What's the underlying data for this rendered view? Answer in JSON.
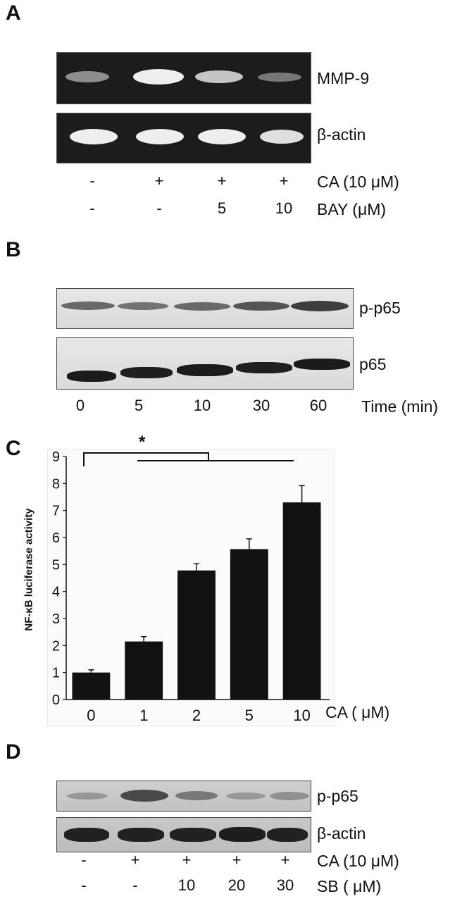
{
  "panels": {
    "a": {
      "letter": "A",
      "bands": [
        "MMP-9",
        "β-actin"
      ],
      "conditions": [
        {
          "label": "CA (10 μM)",
          "values": [
            "-",
            "+",
            "+",
            "+"
          ]
        },
        {
          "label": "BAY (μM)",
          "values": [
            "-",
            "-",
            "5",
            "10"
          ]
        }
      ],
      "mmp9_intensity": [
        0.5,
        1.0,
        0.8,
        0.4
      ],
      "actin_intensity": [
        1.0,
        1.0,
        1.0,
        0.9
      ]
    },
    "b": {
      "letter": "B",
      "bands": [
        "p-p65",
        "p65"
      ],
      "time_label": "Time (min)",
      "times": [
        "0",
        "5",
        "10",
        "30",
        "60"
      ],
      "pp65_intensity": [
        0.6,
        0.55,
        0.6,
        0.7,
        0.8
      ]
    },
    "c": {
      "letter": "C",
      "significance": "*"
    },
    "d": {
      "letter": "D",
      "bands": [
        "p-p65",
        "β-actin"
      ],
      "conditions": [
        {
          "label": "CA (10 μM)",
          "values": [
            "-",
            "+",
            "+",
            "+",
            "+"
          ]
        },
        {
          "label": "SB ( μM)",
          "values": [
            "-",
            "-",
            "10",
            "20",
            "30"
          ]
        }
      ],
      "pp65_intensity": [
        0.35,
        0.8,
        0.5,
        0.35,
        0.4
      ]
    }
  },
  "chart_data": {
    "type": "bar",
    "categories": [
      "0",
      "1",
      "2",
      "5",
      "10"
    ],
    "values": [
      1.0,
      2.15,
      4.78,
      5.57,
      7.3
    ],
    "errors": [
      0.1,
      0.18,
      0.25,
      0.38,
      0.62
    ],
    "ylabel": "NF-κB luciferase activity",
    "xlabel": "CA ( μM)",
    "ylim": [
      0,
      9
    ],
    "yticks": [
      0,
      1,
      2,
      3,
      4,
      5,
      6,
      7,
      8,
      9
    ],
    "bar_color": "#111111",
    "grid": false
  }
}
